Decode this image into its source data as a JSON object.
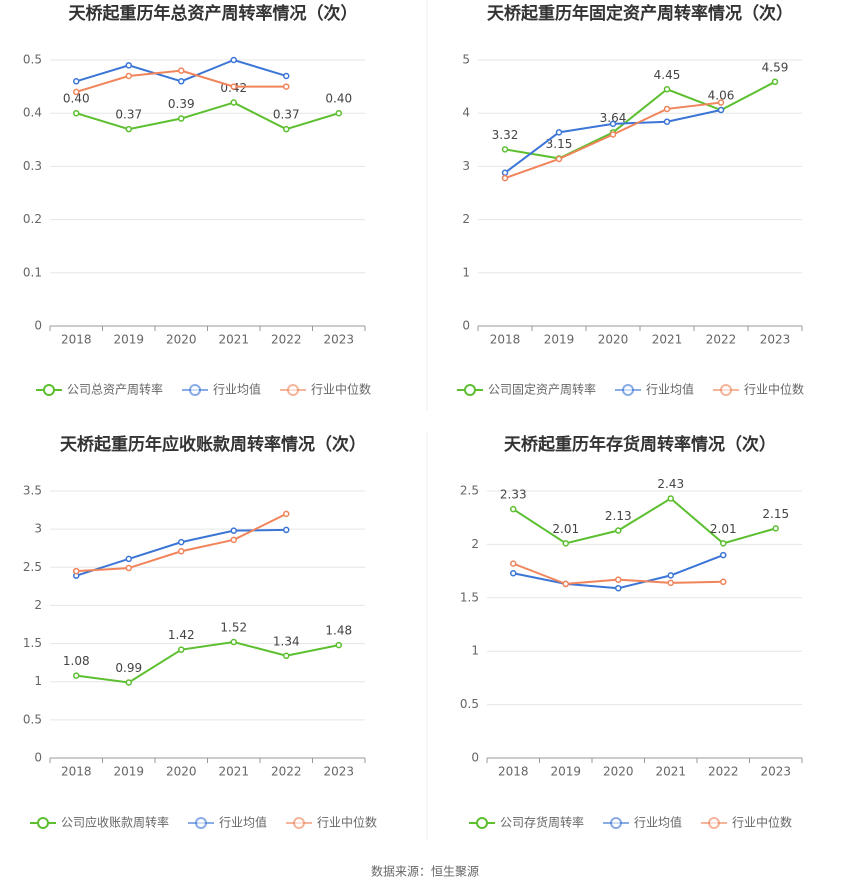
{
  "chart_data": [
    {
      "type": "line",
      "title": "天桥起重历年总资产周转率情况（次）",
      "categories": [
        "2018",
        "2019",
        "2020",
        "2021",
        "2022",
        "2023"
      ],
      "series": [
        {
          "name": "公司总资产周转率",
          "color": "#5cbf2f",
          "values": [
            0.4,
            0.37,
            0.39,
            0.42,
            0.37,
            0.4
          ],
          "value_labels": [
            "0.40",
            "0.37",
            "0.39",
            "0.42",
            "0.37",
            "0.40"
          ]
        },
        {
          "name": "行业均值",
          "color": "#3b75d6",
          "values": [
            0.46,
            0.49,
            0.46,
            0.5,
            0.47,
            null
          ]
        },
        {
          "name": "行业中位数",
          "color": "#f0845a",
          "values": [
            0.44,
            0.47,
            0.48,
            0.45,
            0.45,
            null
          ]
        }
      ],
      "ylim": [
        0,
        0.5
      ],
      "yticks": [
        0,
        0.1,
        0.2,
        0.3,
        0.4,
        0.5
      ],
      "grid": true
    },
    {
      "type": "line",
      "title": "天桥起重历年固定资产周转率情况（次）",
      "categories": [
        "2018",
        "2019",
        "2020",
        "2021",
        "2022",
        "2023"
      ],
      "series": [
        {
          "name": "公司固定资产周转率",
          "color": "#5cbf2f",
          "values": [
            3.32,
            3.15,
            3.64,
            4.45,
            4.06,
            4.59
          ]
        },
        {
          "name": "行业均值",
          "color": "#3b75d6",
          "values": [
            2.88,
            3.64,
            3.8,
            3.84,
            4.06,
            null
          ]
        },
        {
          "name": "行业中位数",
          "color": "#f0845a",
          "values": [
            2.78,
            3.14,
            3.6,
            4.08,
            4.2,
            null
          ]
        }
      ],
      "ylim": [
        0,
        5
      ],
      "yticks": [
        0,
        1,
        2,
        3,
        4,
        5
      ],
      "grid": true
    },
    {
      "type": "line",
      "title": "天桥起重历年应收账款周转率情况（次）",
      "categories": [
        "2018",
        "2019",
        "2020",
        "2021",
        "2022",
        "2023"
      ],
      "series": [
        {
          "name": "公司应收账款周转率",
          "color": "#5cbf2f",
          "values": [
            1.08,
            0.99,
            1.42,
            1.52,
            1.34,
            1.48
          ]
        },
        {
          "name": "行业均值",
          "color": "#3b75d6",
          "values": [
            2.39,
            2.61,
            2.83,
            2.98,
            2.99,
            null
          ]
        },
        {
          "name": "行业中位数",
          "color": "#f0845a",
          "values": [
            2.45,
            2.49,
            2.71,
            2.86,
            3.2,
            null
          ]
        }
      ],
      "ylim": [
        0,
        3.5
      ],
      "yticks": [
        0,
        0.5,
        1,
        1.5,
        2,
        2.5,
        3,
        3.5
      ],
      "grid": true
    },
    {
      "type": "line",
      "title": "天桥起重历年存货周转率情况（次）",
      "categories": [
        "2018",
        "2019",
        "2020",
        "2021",
        "2022",
        "2023"
      ],
      "series": [
        {
          "name": "公司存货周转率",
          "color": "#5cbf2f",
          "values": [
            2.33,
            2.01,
            2.13,
            2.43,
            2.01,
            2.15
          ]
        },
        {
          "name": "行业均值",
          "color": "#3b75d6",
          "values": [
            1.73,
            1.63,
            1.59,
            1.71,
            1.9,
            null
          ]
        },
        {
          "name": "行业中位数",
          "color": "#f0845a",
          "values": [
            1.82,
            1.63,
            1.67,
            1.64,
            1.65,
            null
          ]
        }
      ],
      "ylim": [
        0,
        2.5
      ],
      "yticks": [
        0,
        0.5,
        1,
        1.5,
        2,
        2.5
      ],
      "grid": true
    }
  ],
  "source": "数据来源：恒生聚源"
}
